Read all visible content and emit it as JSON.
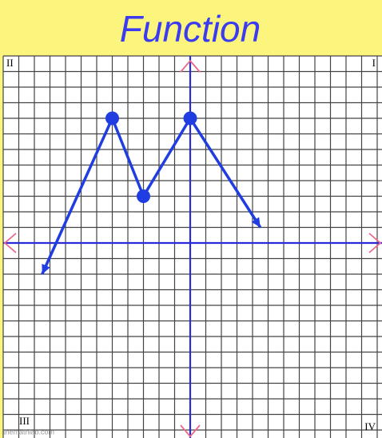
{
  "chart_data": {
    "type": "line",
    "title": "Function",
    "x": [
      -9.5,
      -5,
      -3,
      0,
      4.5
    ],
    "series": [
      {
        "color": "#1f3de0",
        "values": [
          -2,
          8,
          3,
          8,
          1
        ]
      }
    ],
    "xlim": [
      -12,
      12
    ],
    "ylim": [
      -12,
      12
    ],
    "xticks": [
      -12,
      -11,
      -10,
      -9,
      -8,
      -7,
      -6,
      -5,
      -4,
      -3,
      -2,
      -1,
      0,
      1,
      2,
      3,
      4,
      5,
      6,
      7,
      8,
      9,
      10,
      11,
      12
    ],
    "yticks": [
      -12,
      -11,
      -10,
      -9,
      -8,
      -7,
      -6,
      -5,
      -4,
      -3,
      -2,
      -1,
      0,
      1,
      2,
      3,
      4,
      5,
      6,
      7,
      8,
      9,
      10,
      11,
      12
    ],
    "grid": true,
    "arrows": true,
    "quadrant_labels": [
      "I",
      "II",
      "III",
      "IV"
    ],
    "watermark": "themathlab.com"
  }
}
